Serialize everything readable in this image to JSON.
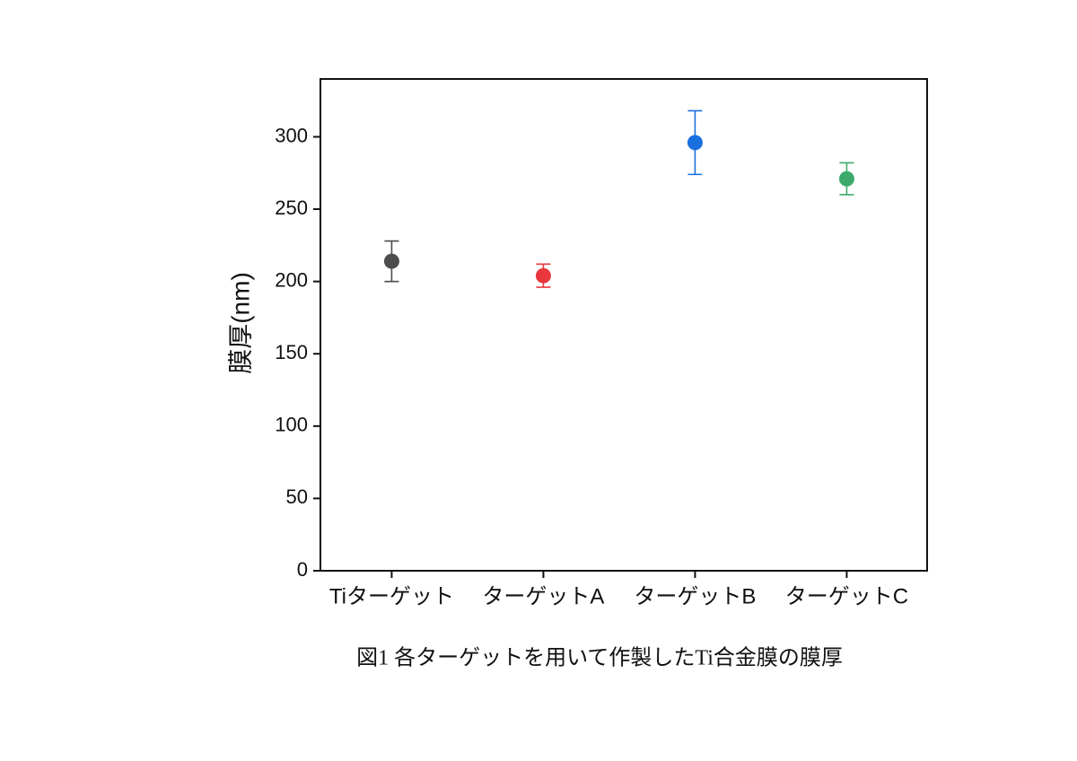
{
  "chart_data": {
    "type": "errorbar",
    "ylabel": "膜厚(nm)",
    "caption": "図1 各ターゲットを用いて作製したTi合金膜の膜厚",
    "categories": [
      "Tiターゲット",
      "ターゲットA",
      "ターゲットB",
      "ターゲットC"
    ],
    "values": [
      214,
      204,
      296,
      271
    ],
    "errors": [
      14,
      8,
      22,
      11
    ],
    "colors": [
      "#4d4d4d",
      "#e8383d",
      "#1a6fdf",
      "#3daa6a"
    ],
    "ylim": [
      0,
      340
    ],
    "yticks": [
      0,
      50,
      100,
      150,
      200,
      250,
      300
    ]
  }
}
